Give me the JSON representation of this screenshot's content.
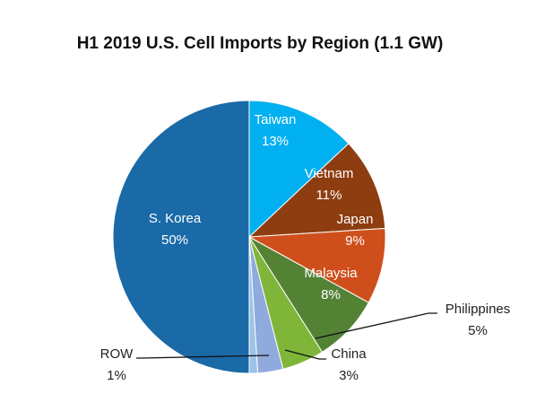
{
  "chart_data": {
    "type": "pie",
    "title": "H1 2019 U.S. Cell Imports by Region (1.1 GW)",
    "start": "12 o'clock, clockwise",
    "slices": [
      {
        "label": "Taiwan",
        "value": 13,
        "display": "13%",
        "color": "#00b0f0",
        "label_position": "inside"
      },
      {
        "label": "Vietnam",
        "value": 11,
        "display": "11%",
        "color": "#8e3d10",
        "label_position": "inside"
      },
      {
        "label": "Japan",
        "value": 9,
        "display": "9%",
        "color": "#cf4f1c",
        "label_position": "inside"
      },
      {
        "label": "Malaysia",
        "value": 8,
        "display": "8%",
        "color": "#548235",
        "label_position": "inside"
      },
      {
        "label": "Philippines",
        "value": 5,
        "display": "5%",
        "color": "#7fb539",
        "label_position": "outside"
      },
      {
        "label": "China",
        "value": 3,
        "display": "3%",
        "color": "#8faadc",
        "label_position": "outside"
      },
      {
        "label": "ROW",
        "value": 1,
        "display": "1%",
        "color": "#9dc3e6",
        "label_position": "outside"
      },
      {
        "label": "S. Korea",
        "value": 50,
        "display": "50%",
        "color": "#1a6aa8",
        "label_position": "inside"
      }
    ]
  }
}
